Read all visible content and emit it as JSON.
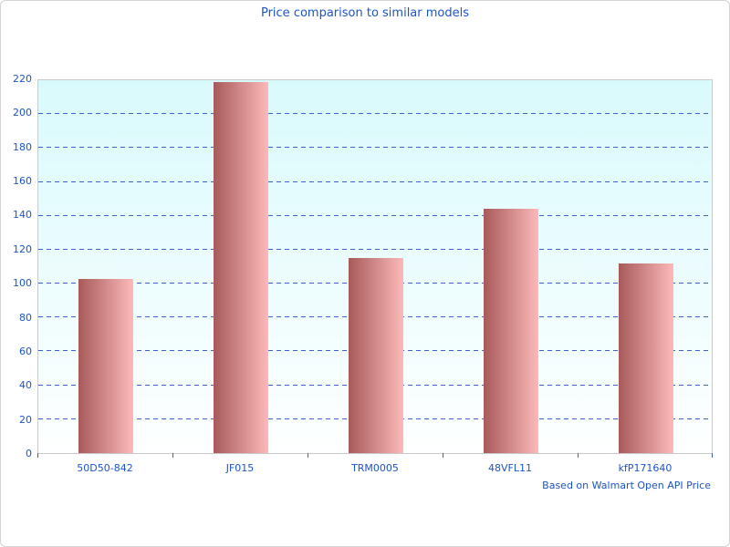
{
  "title": "Price comparison to similar models",
  "footer_note": "Based on Walmart Open API Price",
  "colors": {
    "title_text": "#1b54c8",
    "axis_text": "#1b54c8",
    "gridline": "#3a62c8",
    "plot_border": "#c9c9c9",
    "page_border": "#d5d1d5",
    "plot_bg_top": "#d9fafc",
    "plot_bg_bottom": "#feffff",
    "bar_gradient_left": "#a85a5a",
    "bar_gradient_right": "#fcb9b9"
  },
  "chart_data": {
    "type": "bar",
    "title": "Price comparison to similar models",
    "categories": [
      "50D50-842",
      "JF015",
      "TRM0005",
      "48VFL11",
      "kfP171640"
    ],
    "values": [
      103,
      219,
      115,
      144,
      112
    ],
    "xlabel": "",
    "ylabel": "",
    "ylim": [
      0,
      220
    ],
    "ytick_step": 20,
    "grid": "horizontal-dashed",
    "legend": "none",
    "annotation": "Based on Walmart Open API Price"
  }
}
